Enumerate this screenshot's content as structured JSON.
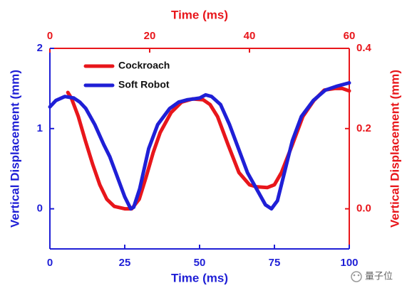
{
  "chart_data": {
    "type": "line",
    "x_label": "Time (ms)",
    "x2_label": "Time (ms)",
    "y_label": "Vertical Displacement (mm)",
    "y2_label": "Vertical Displacement (mm)",
    "xlim": [
      0,
      100
    ],
    "xticks": [
      0,
      25,
      50,
      75,
      100
    ],
    "x2lim": [
      0,
      60
    ],
    "x2ticks": [
      0,
      20,
      40,
      60
    ],
    "ylim": [
      -0.5,
      2
    ],
    "yticks": [
      0,
      1,
      2
    ],
    "y2lim": [
      -0.1,
      0.4
    ],
    "y2ticks": [
      {
        "value": 0,
        "label": "0.0"
      },
      {
        "value": 0.2,
        "label": "0.2"
      },
      {
        "value": 0.4,
        "label": "0.4"
      }
    ],
    "axis_colors": {
      "x": "#1f1fd6",
      "y": "#1f1fd6",
      "x2": "#e8161b",
      "y2": "#e8161b"
    },
    "grid": false,
    "legend": "upper-left",
    "series": [
      {
        "name": "Cockroach",
        "color": "#e8161b",
        "axis": "y2",
        "xaxis": "x2",
        "x": [
          3.6,
          4.3,
          5.7,
          7.1,
          8.6,
          10,
          11.4,
          12.9,
          15,
          16.4,
          17.9,
          19.3,
          20.7,
          22.1,
          24.3,
          26.4,
          28.6,
          30.7,
          32.1,
          33.6,
          35.7,
          37.9,
          40,
          41.4,
          43.6,
          45,
          46.4,
          48.6,
          50.7,
          52.9,
          55,
          57.1,
          58.6,
          60
        ],
        "values": [
          0.29,
          0.276,
          0.23,
          0.17,
          0.11,
          0.06,
          0.024,
          0.006,
          0,
          0,
          0.024,
          0.08,
          0.14,
          0.19,
          0.24,
          0.266,
          0.274,
          0.272,
          0.26,
          0.23,
          0.16,
          0.09,
          0.06,
          0.055,
          0.053,
          0.06,
          0.09,
          0.16,
          0.23,
          0.27,
          0.296,
          0.3,
          0.3,
          0.294
        ]
      },
      {
        "name": "Soft Robot",
        "color": "#1f1fd6",
        "x": [
          0,
          2,
          5,
          8,
          10,
          12,
          15,
          18,
          20,
          22,
          25,
          27,
          28,
          30,
          33,
          36,
          40,
          43,
          46,
          48,
          50,
          52,
          54,
          57,
          60,
          63,
          66,
          69,
          72,
          74,
          76,
          78,
          81,
          84,
          88,
          92,
          96,
          100
        ],
        "values": [
          1.27,
          1.35,
          1.4,
          1.38,
          1.33,
          1.25,
          1.05,
          0.8,
          0.65,
          0.45,
          0.15,
          0,
          0.02,
          0.25,
          0.75,
          1.05,
          1.25,
          1.33,
          1.36,
          1.37,
          1.38,
          1.42,
          1.4,
          1.3,
          1.05,
          0.75,
          0.45,
          0.25,
          0.05,
          0,
          0.1,
          0.4,
          0.85,
          1.15,
          1.35,
          1.48,
          1.53,
          1.57
        ]
      }
    ]
  },
  "watermark": "量子位"
}
